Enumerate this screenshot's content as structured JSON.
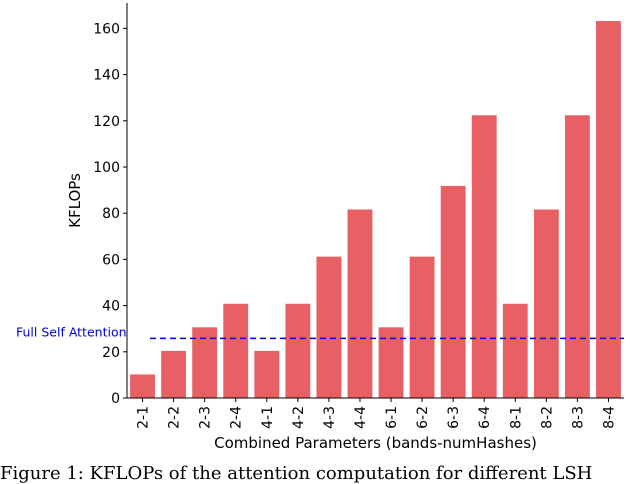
{
  "chart_data": {
    "type": "bar",
    "categories": [
      "2-1",
      "2-2",
      "2-3",
      "2-4",
      "4-1",
      "4-2",
      "4-3",
      "4-4",
      "6-1",
      "6-2",
      "6-3",
      "6-4",
      "8-1",
      "8-2",
      "8-3",
      "8-4"
    ],
    "values": [
      10.2,
      20.4,
      30.6,
      40.8,
      20.4,
      40.8,
      61.2,
      81.6,
      30.6,
      61.2,
      91.8,
      122.4,
      40.8,
      81.6,
      122.4,
      163.2
    ],
    "xlabel": "Combined Parameters (bands-numHashes)",
    "ylabel": "KFLOPs",
    "ylim": [
      0,
      171
    ],
    "yticks": [
      0,
      20,
      40,
      60,
      80,
      100,
      120,
      140,
      160
    ],
    "grid": false,
    "bar_color": "#e96064",
    "reference_line": {
      "label": "Full Self Attention",
      "value": 25.8,
      "color": "#0000dd",
      "style": "dashed"
    }
  },
  "caption": "Figure 1: KFLOPs of the attention computation for different LSH"
}
